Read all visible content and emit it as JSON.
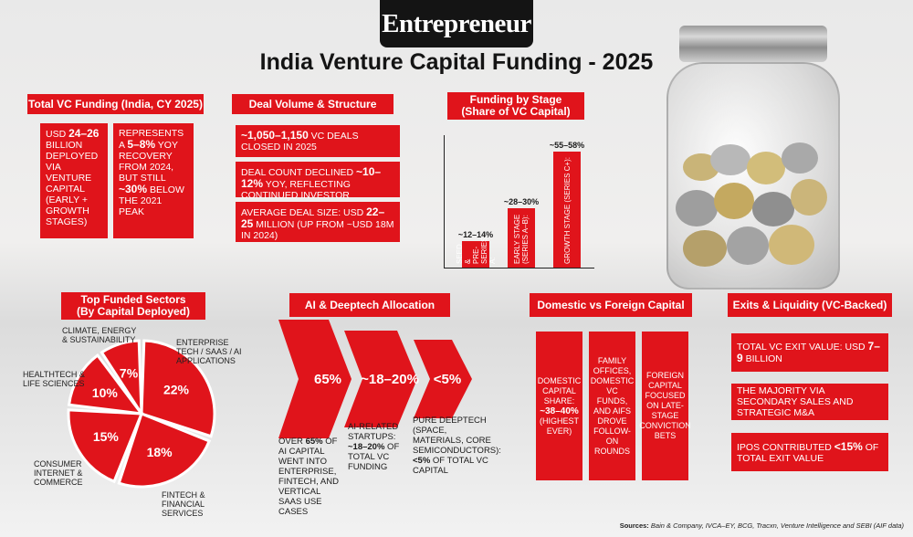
{
  "brand": "Entrepreneur",
  "title": "India Venture Capital Funding - 2025",
  "total_vc": {
    "header": "Total VC Funding (India, CY 2025)",
    "left_pre": "USD ",
    "left_bold": "24–26",
    "left_post": " billion deployed via venture capital (early + growth stages)",
    "right_pre": "Represents a ",
    "right_bold": "5–8%",
    "right_mid": " YoY recovery from 2024, but still ",
    "right_bold2": "~30%",
    "right_post": " below the 2021 peak"
  },
  "deal_volume": {
    "header": "Deal Volume & Structure",
    "b1_bold": "~1,050–1,150",
    "b1_post": " VC deals closed in 2025",
    "b2_pre": "Deal count declined ",
    "b2_bold": "~10–12%",
    "b2_post": " YoY, reflecting continued investor selectivity",
    "b3_pre": "Average deal size: USD ",
    "b3_bold": "22–25",
    "b3_post": " million (up from ~USD 18M in 2024)"
  },
  "funding_stage": {
    "header_line1": "Funding by Stage",
    "header_line2": "(Share of VC Capital)",
    "bars": [
      {
        "label": "Seed & Pre-Series A:",
        "value_text": "~12–14%",
        "value": 13
      },
      {
        "label": "Early stage (Series A–B):",
        "value_text": "~28–30%",
        "value": 29
      },
      {
        "label": "Growth stage (Series C+):",
        "value_text": "~55–58%",
        "value": 56.5
      }
    ]
  },
  "sectors": {
    "header_line1": "Top Funded Sectors",
    "header_line2": "(By Capital Deployed)",
    "slices": [
      {
        "label": "Enterprise tech / SaaS / AI applications",
        "value_text": "22%",
        "value": 22
      },
      {
        "label": "Fintech & financial services",
        "value_text": "18%",
        "value": 18
      },
      {
        "label": "Consumer internet & commerce",
        "value_text": "15%",
        "value": 15
      },
      {
        "label": "Healthtech & life sciences",
        "value_text": "10%",
        "value": 10
      },
      {
        "label": "Climate, energy & sustainability",
        "value_text": "7%",
        "value": 7
      }
    ],
    "lbl_enterprise_1": "Enterprise",
    "lbl_enterprise_2": "tech / SaaS / AI",
    "lbl_enterprise_3": "applications",
    "lbl_fintech_1": "Fintech &",
    "lbl_fintech_2": "financial",
    "lbl_fintech_3": "services",
    "lbl_consumer_1": "Consumer",
    "lbl_consumer_2": "internet &",
    "lbl_consumer_3": "commerce",
    "lbl_health_1": "Healthtech &",
    "lbl_health_2": "life sciences",
    "lbl_climate_1": "Climate, energy",
    "lbl_climate_2": "& sustainability"
  },
  "ai": {
    "header": "AI & Deeptech Allocation",
    "arrow1": "65%",
    "arrow2": "~18–20%",
    "arrow3": "<5%",
    "t1_pre": "Over ",
    "t1_bold": "65%",
    "t1_post": " of AI capital went into enterprise, fintech, and vertical SaaS use cases",
    "t2_pre": "AI-related startups: ",
    "t2_bold": "~18–20%",
    "t2_post": " of total VC funding",
    "t3_pre": "Pure deeptech (space, materials, core semiconductors): ",
    "t3_bold": "<5%",
    "t3_post": " of total VC capital"
  },
  "domestic": {
    "header": "Domestic vs Foreign Capital",
    "c1_pre": "Domestic capital share: ",
    "c1_bold": "~38–40%",
    "c1_post": " (highest ever)",
    "c2": "Family offices, domestic VC funds, and AIFs drove follow-on rounds",
    "c3": "Foreign capital focused on late-stage conviction bets"
  },
  "exits": {
    "header": "Exits & Liquidity (VC-Backed)",
    "e1_pre": "Total VC exit value: USD ",
    "e1_bold": "7–9",
    "e1_post": " billion",
    "e2": "The majority via secondary sales and strategic M&A",
    "e3_pre": "IPOs contributed ",
    "e3_bold": "<15%",
    "e3_post": " of total exit value"
  },
  "sources_label": "Sources:",
  "sources_text": "Bain & Company, IVCA–EY, BCG, Tracxn, Venture Intelligence and SEBI (AIF data)",
  "colors": {
    "accent": "#e0141b",
    "dark": "#141414"
  }
}
